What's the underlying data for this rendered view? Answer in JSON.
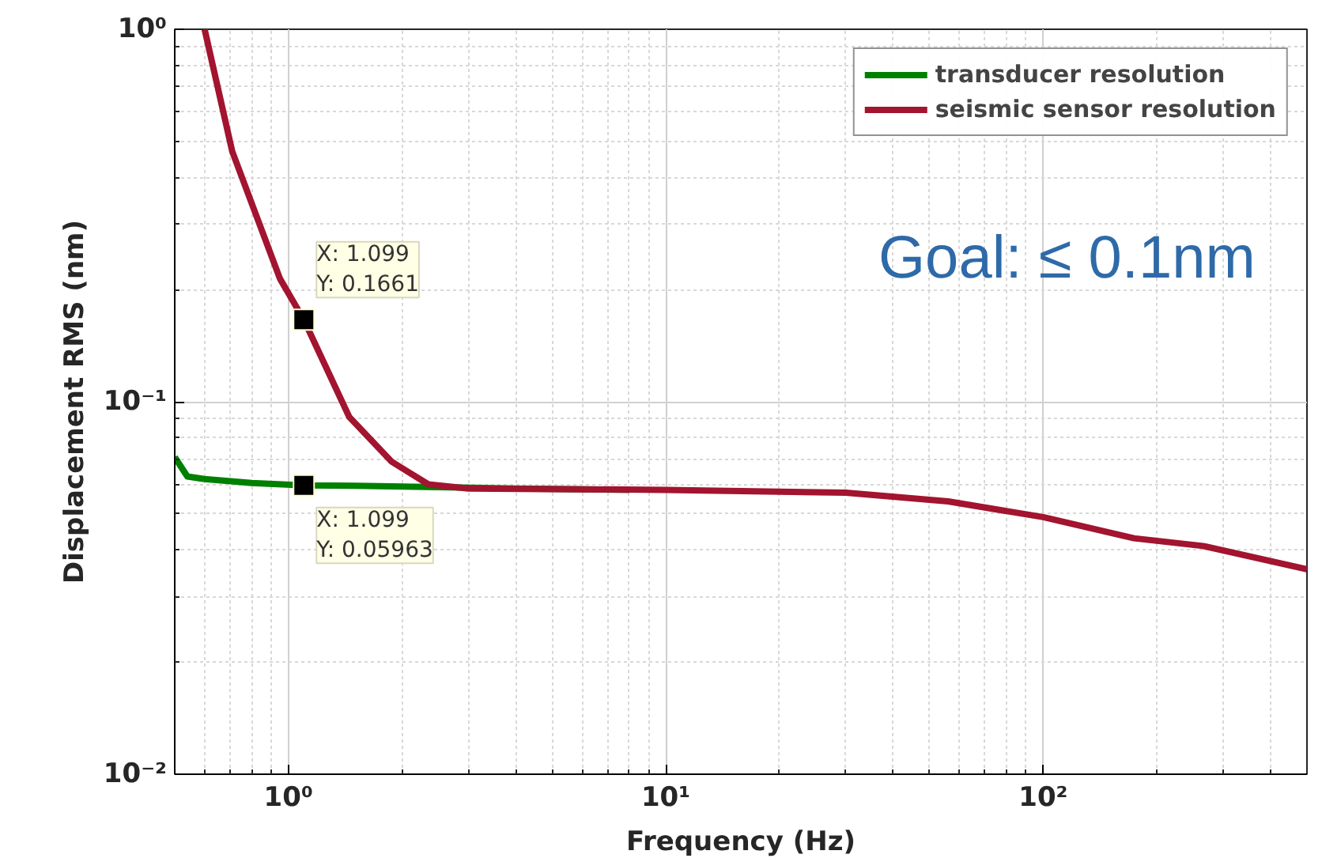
{
  "chart_data": {
    "type": "line",
    "xlabel": "Frequency (Hz)",
    "ylabel": "Displacement RMS (nm)",
    "log": "xy",
    "xlim": [
      0.5,
      500
    ],
    "ylim": [
      0.01,
      1
    ],
    "xticks": [
      {
        "value": 1,
        "label": "10⁰"
      },
      {
        "value": 10,
        "label": "10¹"
      },
      {
        "value": 100,
        "label": "10²"
      }
    ],
    "yticks": [
      {
        "value": 0.01,
        "label": "10⁻²"
      },
      {
        "value": 0.1,
        "label": "10⁻¹"
      },
      {
        "value": 1,
        "label": "10⁰"
      }
    ],
    "grid": true,
    "legend": "top right",
    "marker": "none",
    "line_style": "solid",
    "series": [
      {
        "name": "transducer resolution",
        "color": "#008000",
        "x": [
          0.5,
          0.54,
          0.6,
          0.8,
          1.099,
          1.5,
          2.5,
          4,
          8
        ],
        "values": [
          0.071,
          0.063,
          0.062,
          0.0605,
          0.05963,
          0.0595,
          0.059,
          0.0585,
          0.058
        ]
      },
      {
        "name": "seismic sensor resolution",
        "color": "#a2142f",
        "x": [
          0.6,
          0.71,
          0.95,
          1.099,
          1.45,
          1.88,
          2.35,
          3,
          10,
          30,
          56,
          100,
          174,
          265,
          500
        ],
        "values": [
          1.0,
          0.47,
          0.214,
          0.1661,
          0.091,
          0.069,
          0.06,
          0.0585,
          0.058,
          0.057,
          0.054,
          0.049,
          0.043,
          0.041,
          0.0355
        ]
      }
    ],
    "annotations": [
      {
        "text": "X: 1.099\nY: 0.1661",
        "x": 1.099,
        "y": 0.1661
      },
      {
        "text": "X: 1.099\nY: 0.05963",
        "x": 1.099,
        "y": 0.05963
      },
      "Goal: ≤ 0.1nm"
    ]
  }
}
